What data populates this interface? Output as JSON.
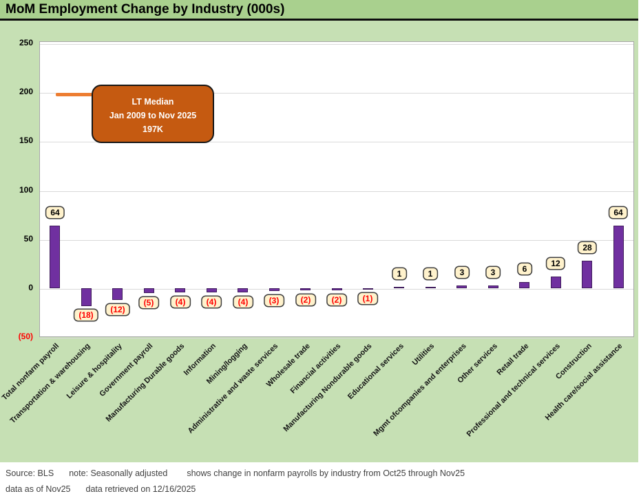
{
  "title": "MoM Employment Change by Industry (000s)",
  "annotation": {
    "line1": "LT Median",
    "line2": "Jan 2009 to Nov 2025",
    "line3": "197K"
  },
  "footer": {
    "source": "Source: BLS",
    "note": "note: Seasonally adjusted",
    "description": "shows change in nonfarm payrolls by industry from Oct25 through Nov25",
    "as_of": "data as of Nov25",
    "retrieved": "data retrieved on 12/16/2025"
  },
  "colors": {
    "header_green": "#A9D08E",
    "body_green": "#C6E0B4",
    "bar_purple": "#7030A0",
    "bar_border": "#3F1B5B",
    "label_box_bg": "#FFF2CC",
    "negative_red": "#FF0000",
    "annotation_orange": "#C55A11",
    "median_dash_orange": "#ED7D31",
    "gridline_gray": "#D9D9D9",
    "plot_border_gray": "#A6A6A6",
    "footer_text_gray": "#3F3F3F"
  },
  "chart_data": {
    "type": "bar",
    "title": "MoM Employment Change by Industry (000s)",
    "categories": [
      "Total nonfarm payroll",
      "Transportation & warehousing",
      "Leisure & hospitality",
      "Government payroll",
      "Manufacturing Durable goods",
      "Information",
      "Mining/logging",
      "Administrative and waste services",
      "Wholesale trade",
      "Financial activities",
      "Manufacturing Nondurable goods",
      "Educational services",
      "Utilities",
      "Mgmt ofcompanies and enterprises",
      "Other services",
      "Retail trade",
      "Professional and technical services",
      "Construction",
      "Health care/social assistance"
    ],
    "values": [
      64,
      -18,
      -12,
      -5,
      -4,
      -4,
      -4,
      -3,
      -2,
      -2,
      -1,
      1,
      1,
      3,
      3,
      6,
      12,
      28,
      64
    ],
    "value_labels": [
      "64",
      "(18)",
      "(12)",
      "(5)",
      "(4)",
      "(4)",
      "(4)",
      "(3)",
      "(2)",
      "(2)",
      "(1)",
      "1",
      "1",
      "3",
      "3",
      "6",
      "12",
      "28",
      "64"
    ],
    "xlabel": "",
    "ylabel": "",
    "ylim": [
      -50,
      250
    ],
    "yticks": [
      250,
      200,
      150,
      100,
      50,
      0,
      -50
    ],
    "ytick_labels": [
      "250",
      "200",
      "150",
      "100",
      "50",
      "0",
      "(50)"
    ],
    "grid": true,
    "legend_position": "none",
    "median_line": {
      "value": 197,
      "label": "LT Median Jan 2009 to Nov 2025 197K"
    }
  }
}
